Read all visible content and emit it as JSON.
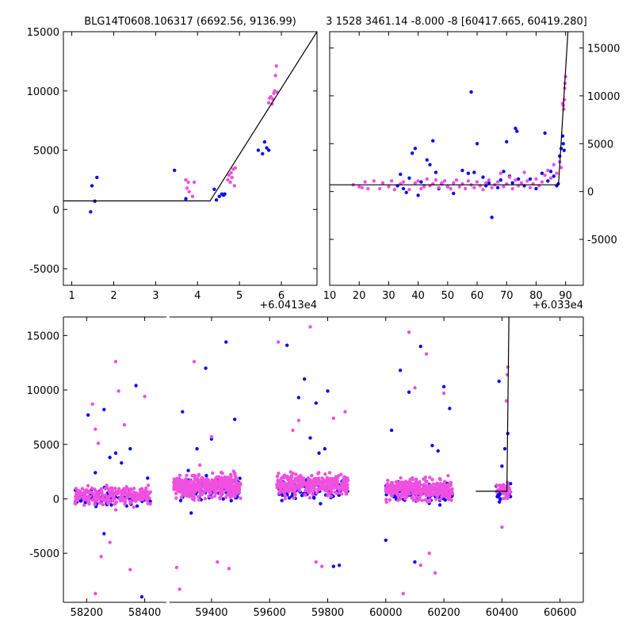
{
  "palette": {
    "band_a": "#0b0bf0",
    "band_b": "#f050e0",
    "model_line": "#000000",
    "frame": "#000000",
    "background": "#ffffff"
  },
  "chart_data": [
    {
      "id": "zoom-left",
      "type": "scatter",
      "title": "BLG14T0608.106317 (6692.56, 9136.99)",
      "x_offset_label": "+6.0413e4",
      "xlim": [
        0.8,
        6.85
      ],
      "ylim": [
        -6400,
        15000
      ],
      "x_ticks": [
        1,
        2,
        3,
        4,
        5,
        6
      ],
      "y_ticks": [
        -5000,
        0,
        5000,
        10000,
        15000
      ],
      "y_axis_side": "left",
      "model": {
        "x": [
          0.8,
          4.3,
          6.85
        ],
        "y": [
          720,
          720,
          15000
        ]
      },
      "series": [
        {
          "color_key": "band_a",
          "points": [
            [
              1.45,
              -200
            ],
            [
              1.48,
              2000
            ],
            [
              1.55,
              700
            ],
            [
              1.6,
              2700
            ],
            [
              3.45,
              3300
            ],
            [
              3.72,
              900
            ],
            [
              4.4,
              1700
            ],
            [
              4.45,
              800
            ],
            [
              4.52,
              1100
            ],
            [
              4.58,
              1300
            ],
            [
              4.62,
              1200
            ],
            [
              4.65,
              1300
            ],
            [
              5.45,
              5000
            ],
            [
              5.55,
              4700
            ],
            [
              5.6,
              5700
            ],
            [
              5.65,
              5200
            ],
            [
              5.7,
              5000
            ]
          ]
        },
        {
          "color_key": "band_b",
          "points": [
            [
              3.72,
              2500
            ],
            [
              3.75,
              1800
            ],
            [
              3.78,
              2300
            ],
            [
              3.8,
              1500
            ],
            [
              3.88,
              1100
            ],
            [
              3.92,
              2300
            ],
            [
              4.72,
              2500
            ],
            [
              4.75,
              2900
            ],
            [
              4.78,
              2300
            ],
            [
              4.8,
              3100
            ],
            [
              4.82,
              2700
            ],
            [
              4.85,
              3400
            ],
            [
              4.88,
              2000
            ],
            [
              4.9,
              3500
            ],
            [
              5.7,
              9000
            ],
            [
              5.72,
              9400
            ],
            [
              5.75,
              9500
            ],
            [
              5.78,
              8900
            ],
            [
              5.8,
              9300
            ],
            [
              5.82,
              9800
            ],
            [
              5.84,
              10000
            ],
            [
              5.86,
              11300
            ],
            [
              5.88,
              12100
            ],
            [
              5.9,
              9900
            ]
          ]
        }
      ]
    },
    {
      "id": "zoom-right",
      "type": "scatter",
      "title": "3 1528 3461.14 -8.000 -8 [60417.665, 60419.280]",
      "x_offset_label": "+6.033e4",
      "xlim": [
        10,
        96
      ],
      "ylim": [
        -9800,
        16700
      ],
      "x_ticks": [
        10,
        20,
        30,
        40,
        50,
        60,
        70,
        80,
        90
      ],
      "y_ticks": [
        -5000,
        0,
        5000,
        10000,
        15000
      ],
      "y_axis_side": "right",
      "model": {
        "x": [
          10,
          87.6,
          90.8
        ],
        "y": [
          700,
          700,
          16700
        ]
      },
      "series": [
        {
          "color_key": "band_a",
          "points": [
            [
              33,
              600
            ],
            [
              34,
              1800
            ],
            [
              35,
              300
            ],
            [
              36,
              -100
            ],
            [
              37,
              1400
            ],
            [
              38,
              4000
            ],
            [
              39,
              4500
            ],
            [
              40,
              -400
            ],
            [
              41,
              1000
            ],
            [
              42,
              600
            ],
            [
              43,
              3300
            ],
            [
              44,
              2800
            ],
            [
              45,
              5300
            ],
            [
              46,
              2000
            ],
            [
              47,
              300
            ],
            [
              48,
              800
            ],
            [
              50,
              500
            ],
            [
              52,
              -200
            ],
            [
              55,
              2200
            ],
            [
              57,
              1900
            ],
            [
              58,
              10400
            ],
            [
              59,
              2000
            ],
            [
              60,
              5000
            ],
            [
              62,
              1500
            ],
            [
              63,
              600
            ],
            [
              64,
              900
            ],
            [
              65,
              -2700
            ],
            [
              67,
              400
            ],
            [
              68,
              1200
            ],
            [
              69,
              2100
            ],
            [
              70,
              5200
            ],
            [
              71,
              1600
            ],
            [
              72,
              900
            ],
            [
              73,
              6600
            ],
            [
              73.5,
              6300
            ],
            [
              74,
              1300
            ],
            [
              76,
              600
            ],
            [
              78,
              1300
            ],
            [
              80,
              300
            ],
            [
              82,
              1900
            ],
            [
              83,
              6100
            ],
            [
              84,
              1100
            ],
            [
              85,
              2100
            ],
            [
              86,
              1600
            ],
            [
              87,
              600
            ],
            [
              87.5,
              800
            ],
            [
              88,
              3700
            ],
            [
              88.5,
              4500
            ],
            [
              89,
              5800
            ],
            [
              89.2,
              5000
            ],
            [
              89.5,
              4300
            ]
          ]
        },
        {
          "color_key": "band_b",
          "points": [
            [
              18,
              700
            ],
            [
              20,
              500
            ],
            [
              21,
              400
            ],
            [
              22,
              1000
            ],
            [
              23,
              300
            ],
            [
              25,
              1100
            ],
            [
              27,
              300
            ],
            [
              28,
              900
            ],
            [
              30,
              500
            ],
            [
              31,
              1100
            ],
            [
              32,
              200
            ],
            [
              34,
              800
            ],
            [
              35,
              1000
            ],
            [
              37,
              200
            ],
            [
              39,
              900
            ],
            [
              40,
              1100
            ],
            [
              41,
              300
            ],
            [
              42,
              500
            ],
            [
              43,
              1300
            ],
            [
              44,
              600
            ],
            [
              45,
              800
            ],
            [
              46,
              1200
            ],
            [
              47,
              400
            ],
            [
              48,
              900
            ],
            [
              49,
              1100
            ],
            [
              50,
              500
            ],
            [
              51,
              300
            ],
            [
              52,
              900
            ],
            [
              53,
              1200
            ],
            [
              54,
              500
            ],
            [
              55,
              800
            ],
            [
              56,
              300
            ],
            [
              57,
              1100
            ],
            [
              58,
              700
            ],
            [
              59,
              400
            ],
            [
              60,
              1000
            ],
            [
              61,
              600
            ],
            [
              62,
              200
            ],
            [
              63,
              900
            ],
            [
              64,
              1200
            ],
            [
              65,
              400
            ],
            [
              66,
              700
            ],
            [
              67,
              1000
            ],
            [
              68,
              1900
            ],
            [
              69,
              500
            ],
            [
              70,
              800
            ],
            [
              71,
              1500
            ],
            [
              72,
              300
            ],
            [
              73,
              1200
            ],
            [
              74,
              600
            ],
            [
              75,
              900
            ],
            [
              76,
              2000
            ],
            [
              77,
              1100
            ],
            [
              78,
              400
            ],
            [
              79,
              800
            ],
            [
              80,
              1300
            ],
            [
              81,
              600
            ],
            [
              82,
              1000
            ],
            [
              83,
              1700
            ],
            [
              84,
              2200
            ],
            [
              85,
              1400
            ],
            [
              86,
              2800
            ],
            [
              87,
              1900
            ],
            [
              88,
              3100
            ],
            [
              88.5,
              2500
            ],
            [
              89,
              9200
            ],
            [
              89.2,
              9000
            ],
            [
              89.4,
              8600
            ],
            [
              89.6,
              9600
            ],
            [
              89.7,
              10800
            ],
            [
              89.8,
              11300
            ],
            [
              90,
              12000
            ]
          ]
        }
      ]
    },
    {
      "id": "full-lightcurve",
      "type": "scatter",
      "title": "",
      "x_offset_label": "",
      "xlim": [
        58120,
        60680
      ],
      "ylim": [
        -9500,
        16700
      ],
      "x_ticks": [
        58200,
        58400,
        59400,
        59600,
        59800,
        60000,
        60200,
        60400,
        60600
      ],
      "y_ticks": [
        -5000,
        0,
        5000,
        10000,
        15000
      ],
      "y_axis_side": "left",
      "break": {
        "x1": 58480,
        "x2": 59250
      },
      "model": {
        "x": [
          60310,
          60417,
          60424
        ],
        "y": [
          700,
          700,
          16700
        ]
      },
      "clusters": [
        {
          "x_range": [
            58160,
            58420
          ],
          "center": 200,
          "spread": 1100,
          "n_a": 80,
          "n_b": 260
        },
        {
          "x_range": [
            59270,
            59500
          ],
          "center": 1100,
          "spread": 1300,
          "n_a": 120,
          "n_b": 420
        },
        {
          "x_range": [
            59625,
            59870
          ],
          "center": 1200,
          "spread": 1200,
          "n_a": 110,
          "n_b": 340
        },
        {
          "x_range": [
            60000,
            60230
          ],
          "center": 800,
          "spread": 1200,
          "n_a": 100,
          "n_b": 340
        },
        {
          "x_range": [
            60380,
            60430
          ],
          "center": 700,
          "spread": 900,
          "n_a": 25,
          "n_b": 50
        }
      ],
      "outliers": {
        "band_a": [
          [
            58180,
            -200
          ],
          [
            58205,
            7700
          ],
          [
            58230,
            2400
          ],
          [
            58260,
            8200
          ],
          [
            58280,
            3800
          ],
          [
            58300,
            4200
          ],
          [
            58320,
            3300
          ],
          [
            58350,
            4600
          ],
          [
            58370,
            10400
          ],
          [
            58390,
            -9000
          ],
          [
            58410,
            1900
          ],
          [
            58260,
            -3200
          ],
          [
            59300,
            8000
          ],
          [
            59320,
            2600
          ],
          [
            59350,
            4600
          ],
          [
            59400,
            5500
          ],
          [
            59450,
            14400
          ],
          [
            59480,
            7300
          ],
          [
            59380,
            12000
          ],
          [
            59330,
            -1300
          ],
          [
            59700,
            9300
          ],
          [
            59720,
            11000
          ],
          [
            59740,
            5600
          ],
          [
            59760,
            8800
          ],
          [
            59790,
            4600
          ],
          [
            59820,
            -6200
          ],
          [
            59840,
            -6100
          ],
          [
            59800,
            9900
          ],
          [
            59660,
            14100
          ],
          [
            59770,
            4200
          ],
          [
            60020,
            6300
          ],
          [
            60050,
            11800
          ],
          [
            60080,
            9800
          ],
          [
            60120,
            14000
          ],
          [
            60160,
            4900
          ],
          [
            60200,
            10300
          ],
          [
            60220,
            8300
          ],
          [
            60180,
            4400
          ],
          [
            60000,
            -3800
          ],
          [
            60100,
            -5800
          ],
          [
            60390,
            10800
          ],
          [
            60400,
            3000
          ],
          [
            60420,
            6000
          ],
          [
            60410,
            4600
          ]
        ],
        "band_b": [
          [
            58220,
            8700
          ],
          [
            58230,
            6400
          ],
          [
            58240,
            5100
          ],
          [
            58250,
            -5300
          ],
          [
            58280,
            -4000
          ],
          [
            58300,
            12600
          ],
          [
            58310,
            9900
          ],
          [
            58330,
            6800
          ],
          [
            58350,
            -6500
          ],
          [
            58400,
            9400
          ],
          [
            58230,
            -8700
          ],
          [
            59280,
            -6300
          ],
          [
            59290,
            -8300
          ],
          [
            59340,
            12600
          ],
          [
            59420,
            -5800
          ],
          [
            59460,
            -6400
          ],
          [
            59360,
            3100
          ],
          [
            59400,
            5700
          ],
          [
            59630,
            14400
          ],
          [
            59740,
            15800
          ],
          [
            59760,
            -5800
          ],
          [
            59780,
            -6200
          ],
          [
            59700,
            7200
          ],
          [
            59680,
            6300
          ],
          [
            59820,
            7400
          ],
          [
            59860,
            8000
          ],
          [
            60080,
            15300
          ],
          [
            60100,
            10200
          ],
          [
            60140,
            13300
          ],
          [
            60150,
            -5000
          ],
          [
            60170,
            -6800
          ],
          [
            60200,
            9700
          ],
          [
            60060,
            -8700
          ],
          [
            60120,
            -6100
          ],
          [
            60400,
            -2600
          ],
          [
            60415,
            9000
          ],
          [
            60418,
            11400
          ],
          [
            60420,
            12100
          ]
        ]
      }
    }
  ]
}
